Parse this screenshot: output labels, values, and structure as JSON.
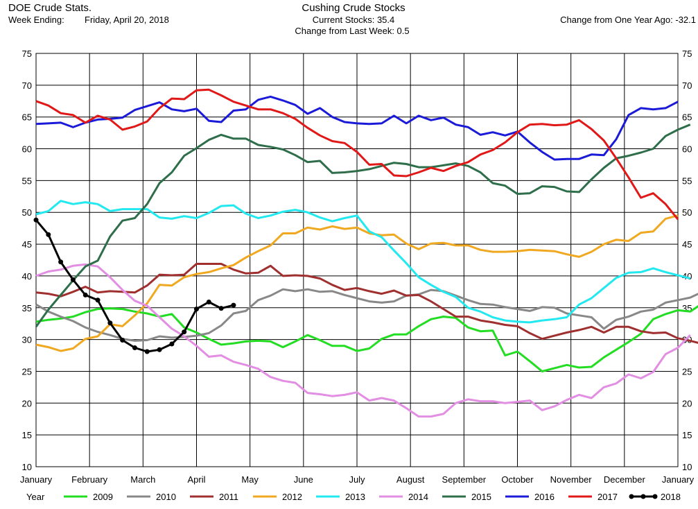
{
  "header": {
    "app_title": "DOE Crude Stats.",
    "week_ending_label": "Week Ending:",
    "week_ending_value": "Friday, April 20, 2018",
    "chart_title": "Cushing Crude Stocks",
    "current_stocks": "Current Stocks:  35.4",
    "change_week": "Change from Last Week:   0.5",
    "change_year": "Change from One Year Ago: -32.1"
  },
  "colors": {
    "2009": "#22dd22",
    "2010": "#888888",
    "2011": "#a03030",
    "2012": "#f0a820",
    "2013": "#22e8f0",
    "2014": "#e28ee2",
    "2015": "#2e6e4a",
    "2016": "#1a1ad8",
    "2017": "#e01818",
    "2018": "#000000"
  },
  "chart_data": {
    "type": "line",
    "title": "Cushing Crude Stocks",
    "ylim": [
      10,
      75
    ],
    "y_ticks": [
      "10",
      "15",
      "20",
      "25",
      "30",
      "35",
      "40",
      "45",
      "50",
      "55",
      "60",
      "65",
      "70",
      "75"
    ],
    "x_ticks": [
      "January",
      "February",
      "March",
      "April",
      "May",
      "June",
      "July",
      "August",
      "September",
      "October",
      "November",
      "December",
      "January"
    ],
    "grid": true,
    "legend_position": "bottom",
    "legend_label": "Year",
    "series": [
      {
        "name": "2009",
        "values": [
          32.8,
          33.1,
          33.3,
          33.6,
          34.3,
          34.8,
          34.9,
          34.8,
          34.4,
          34.1,
          33.6,
          34.0,
          31.9,
          31.1,
          30.1,
          29.2,
          29.4,
          29.7,
          29.8,
          29.7,
          28.8,
          29.7,
          30.7,
          29.9,
          29.0,
          29.0,
          28.2,
          28.6,
          30.1,
          30.8,
          30.8,
          32.1,
          33.2,
          33.6,
          33.4,
          31.9,
          31.3,
          31.4,
          27.5,
          28.1,
          26.6,
          25.0,
          25.5,
          26.0,
          25.6,
          25.7,
          27.2,
          28.4,
          29.6,
          30.9,
          33.2,
          34.0,
          34.6,
          34.4,
          35.7
        ]
      },
      {
        "name": "2010",
        "values": [
          35.5,
          34.4,
          33.6,
          32.9,
          31.9,
          31.2,
          30.7,
          30.1,
          29.8,
          29.9,
          30.5,
          30.3,
          30.4,
          30.6,
          31.0,
          32.2,
          34.1,
          34.5,
          36.2,
          36.9,
          37.9,
          37.6,
          37.9,
          37.5,
          37.6,
          37.0,
          36.5,
          36.0,
          35.8,
          36.0,
          36.9,
          37.1,
          37.8,
          37.6,
          36.9,
          36.2,
          35.6,
          35.5,
          35.1,
          34.8,
          34.5,
          35.1,
          35.0,
          34.1,
          33.8,
          33.5,
          31.7,
          33.1,
          33.6,
          34.4,
          34.7,
          35.8,
          36.2,
          36.6,
          37.5
        ]
      },
      {
        "name": "2011",
        "values": [
          37.4,
          37.2,
          36.8,
          37.5,
          38.3,
          37.4,
          37.6,
          37.5,
          37.4,
          38.5,
          40.2,
          40.1,
          40.2,
          41.9,
          41.9,
          41.9,
          41.0,
          40.4,
          40.5,
          41.6,
          40.0,
          40.1,
          40.0,
          39.6,
          38.6,
          37.8,
          38.1,
          37.6,
          37.2,
          37.7,
          36.9,
          37.0,
          36.0,
          34.8,
          33.6,
          33.6,
          33.0,
          32.7,
          32.3,
          32.1,
          31.0,
          30.1,
          30.6,
          31.1,
          31.5,
          32.0,
          31.1,
          32.0,
          32.0,
          31.3,
          31.0,
          31.1,
          30.2,
          29.8,
          29.3
        ]
      },
      {
        "name": "2012",
        "values": [
          29.2,
          28.8,
          28.2,
          28.6,
          30.1,
          30.5,
          32.4,
          32.1,
          33.8,
          35.7,
          38.6,
          38.5,
          39.8,
          40.3,
          40.6,
          41.2,
          41.7,
          42.9,
          43.9,
          44.8,
          46.7,
          46.7,
          47.6,
          47.3,
          47.8,
          47.4,
          47.6,
          46.7,
          46.4,
          46.5,
          45.1,
          44.2,
          45.1,
          45.2,
          44.8,
          44.8,
          44.1,
          43.8,
          43.8,
          43.9,
          44.1,
          44.0,
          43.9,
          43.4,
          43.0,
          43.8,
          45.0,
          45.7,
          45.5,
          46.8,
          47.0,
          49.0,
          49.5
        ]
      },
      {
        "name": "2013",
        "values": [
          49.7,
          50.2,
          51.8,
          51.3,
          51.6,
          51.3,
          50.2,
          50.5,
          50.5,
          50.5,
          49.2,
          49.0,
          49.4,
          49.1,
          49.9,
          51.0,
          51.1,
          49.8,
          49.1,
          49.5,
          50.1,
          50.4,
          50.0,
          49.2,
          48.6,
          49.1,
          49.5,
          47.0,
          46.1,
          44.0,
          42.0,
          39.8,
          38.6,
          37.5,
          36.7,
          35.0,
          34.4,
          33.5,
          33.0,
          32.8,
          32.7,
          33.0,
          33.2,
          33.5,
          35.5,
          36.5,
          38.1,
          39.7,
          40.5,
          40.6,
          41.2,
          40.6,
          40.1,
          39.6
        ]
      },
      {
        "name": "2014",
        "values": [
          40.0,
          40.7,
          41.0,
          41.6,
          41.8,
          41.5,
          39.8,
          37.8,
          36.1,
          35.3,
          33.5,
          31.7,
          30.5,
          29.0,
          27.3,
          27.5,
          26.5,
          26.0,
          25.4,
          24.1,
          23.5,
          23.2,
          21.6,
          21.4,
          21.1,
          21.3,
          21.7,
          20.4,
          20.8,
          20.4,
          19.2,
          17.9,
          17.9,
          18.3,
          20.0,
          20.6,
          20.3,
          20.3,
          20.0,
          20.2,
          20.4,
          18.9,
          19.5,
          20.5,
          21.3,
          20.8,
          22.5,
          23.1,
          24.5,
          23.9,
          24.9,
          27.7,
          28.7,
          30.7
        ]
      },
      {
        "name": "2015",
        "values": [
          32.0,
          34.7,
          37.0,
          39.3,
          41.5,
          42.4,
          46.2,
          48.7,
          49.1,
          51.3,
          54.6,
          56.3,
          58.9,
          60.1,
          61.4,
          62.2,
          61.6,
          61.6,
          60.6,
          60.3,
          59.9,
          59.0,
          57.9,
          58.1,
          56.2,
          56.3,
          56.5,
          56.8,
          57.3,
          57.8,
          57.6,
          57.1,
          57.1,
          57.4,
          57.7,
          57.3,
          56.3,
          54.6,
          54.2,
          52.9,
          53.0,
          54.1,
          54.0,
          53.3,
          53.2,
          55.2,
          57.0,
          58.5,
          58.9,
          59.4,
          60.0,
          62.0,
          63.0,
          63.8
        ]
      },
      {
        "name": "2016",
        "values": [
          63.9,
          64.0,
          64.1,
          63.4,
          64.1,
          64.6,
          64.7,
          64.9,
          66.1,
          66.7,
          67.3,
          66.2,
          65.9,
          66.3,
          64.4,
          64.2,
          66.0,
          66.2,
          67.7,
          68.2,
          67.6,
          66.9,
          65.5,
          66.4,
          65.0,
          64.2,
          64.0,
          63.9,
          64.0,
          65.2,
          64.0,
          65.2,
          64.5,
          64.9,
          63.8,
          63.4,
          62.2,
          62.6,
          62.1,
          62.7,
          61.0,
          59.5,
          58.3,
          58.4,
          58.4,
          59.1,
          59.0,
          61.5,
          65.3,
          66.4,
          66.2,
          66.4,
          67.4
        ]
      },
      {
        "name": "2017",
        "values": [
          67.5,
          66.8,
          65.6,
          65.3,
          64.1,
          65.2,
          64.6,
          63.0,
          63.5,
          64.3,
          66.4,
          67.9,
          67.8,
          69.2,
          69.3,
          68.4,
          67.4,
          66.8,
          66.2,
          66.2,
          65.6,
          64.7,
          63.3,
          62.1,
          61.2,
          60.9,
          59.5,
          57.5,
          57.6,
          55.8,
          55.7,
          56.3,
          57.0,
          56.5,
          57.3,
          57.9,
          59.1,
          59.8,
          61.0,
          62.6,
          63.8,
          63.9,
          63.7,
          63.8,
          64.5,
          63.1,
          61.3,
          58.5,
          55.5,
          52.3,
          53.0,
          51.3,
          48.9
        ]
      },
      {
        "name": "2018",
        "values": [
          48.8,
          46.5,
          42.2,
          39.4,
          37.0,
          36.2,
          32.6,
          29.9,
          28.7,
          28.1,
          28.4,
          29.3,
          31.2,
          34.8,
          35.9,
          34.9,
          35.4
        ]
      }
    ]
  }
}
